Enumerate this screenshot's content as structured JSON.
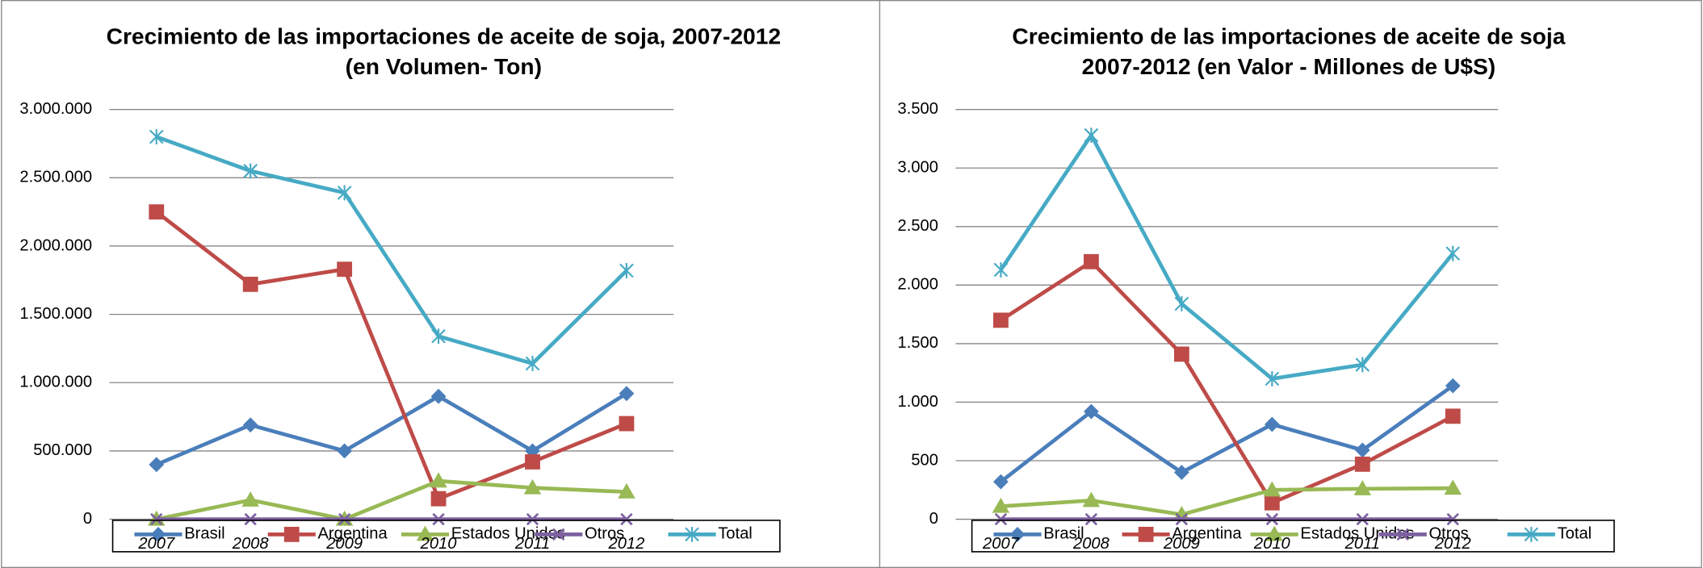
{
  "chart_data": [
    {
      "type": "line",
      "title": [
        "Crecimiento de las importaciones de aceite de soja, 2007-2012",
        "(en Volumen- Ton)"
      ],
      "categories": [
        "2007",
        "2008",
        "2009",
        "2010",
        "2011",
        "2012"
      ],
      "ylim": [
        0,
        3000000
      ],
      "yticks": [
        0,
        {
          "value": 500000,
          "label": "500.000"
        },
        {
          "value": 1000000,
          "label": "1.000.000"
        },
        {
          "value": 1500000,
          "label": "1.500.000"
        },
        {
          "value": 2000000,
          "label": "2.000.000"
        },
        {
          "value": 2500000,
          "label": "2.500.000"
        },
        {
          "value": 3000000,
          "label": "3.000.000"
        }
      ],
      "grid": true,
      "series": [
        {
          "name": "Brasil",
          "color": "#4a7ebb",
          "marker": "diamond",
          "values": [
            400000,
            690000,
            500000,
            900000,
            500000,
            920000
          ]
        },
        {
          "name": "Argentina",
          "color": "#be4b48",
          "marker": "square",
          "values": [
            2250000,
            1720000,
            1830000,
            150000,
            420000,
            700000
          ]
        },
        {
          "name": "Estados Unidos",
          "color": "#98b954",
          "marker": "triangle",
          "values": [
            0,
            140000,
            0,
            280000,
            230000,
            200000
          ]
        },
        {
          "name": "Otros",
          "color": "#7d60a0",
          "marker": "x",
          "values": [
            0,
            0,
            0,
            0,
            0,
            0
          ]
        },
        {
          "name": "Total",
          "color": "#46aac5",
          "marker": "star",
          "values": [
            2800000,
            2550000,
            2390000,
            1340000,
            1140000,
            1820000
          ]
        }
      ]
    },
    {
      "type": "line",
      "title": [
        "Crecimiento de las importaciones de aceite de soja",
        "2007-2012 (en Valor - Millones de U$S)"
      ],
      "categories": [
        "2007",
        "2008",
        "2009",
        "2010",
        "2011",
        "2012"
      ],
      "ylim": [
        0,
        3500
      ],
      "yticks": [
        0,
        500,
        {
          "value": 1000,
          "label": "1.000"
        },
        {
          "value": 1500,
          "label": "1.500"
        },
        {
          "value": 2000,
          "label": "2.000"
        },
        {
          "value": 2500,
          "label": "2.500"
        },
        {
          "value": 3000,
          "label": "3.000"
        },
        {
          "value": 3500,
          "label": "3.500"
        }
      ],
      "grid": true,
      "series": [
        {
          "name": "Brasil",
          "color": "#4a7ebb",
          "marker": "diamond",
          "values": [
            320,
            920,
            400,
            810,
            590,
            1140
          ]
        },
        {
          "name": "Argentina",
          "color": "#be4b48",
          "marker": "square",
          "values": [
            1700,
            2200,
            1410,
            140,
            470,
            880
          ]
        },
        {
          "name": "Estados Unidos",
          "color": "#98b954",
          "marker": "triangle",
          "values": [
            110,
            160,
            40,
            250,
            260,
            265
          ]
        },
        {
          "name": "Otros",
          "color": "#7d60a0",
          "marker": "x",
          "values": [
            0,
            0,
            0,
            0,
            0,
            0
          ]
        },
        {
          "name": "Total",
          "color": "#46aac5",
          "marker": "star",
          "values": [
            2130,
            3280,
            1840,
            1200,
            1320,
            2270
          ]
        }
      ]
    }
  ]
}
